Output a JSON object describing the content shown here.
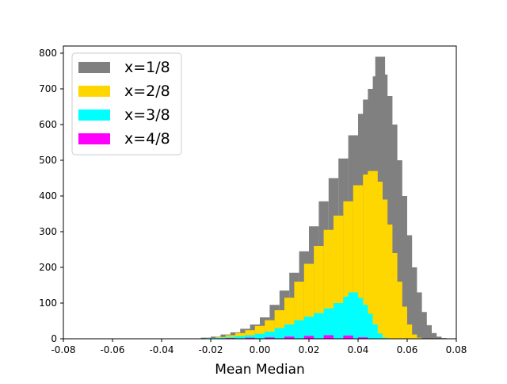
{
  "chart_data": {
    "type": "histogram",
    "title": "",
    "xlabel": "Mean Median",
    "ylabel": "",
    "xlim": [
      -0.08,
      0.08
    ],
    "ylim": [
      0,
      820
    ],
    "x_ticks": [
      "-0.08",
      "-0.06",
      "-0.04",
      "-0.02",
      "0.00",
      "0.02",
      "0.04",
      "0.06",
      "0.08"
    ],
    "x_tick_values": [
      -0.08,
      -0.06,
      -0.04,
      -0.02,
      0.0,
      0.02,
      0.04,
      0.06,
      0.08
    ],
    "y_ticks": [
      "0",
      "100",
      "200",
      "300",
      "400",
      "500",
      "600",
      "700",
      "800"
    ],
    "y_tick_values": [
      0,
      100,
      200,
      300,
      400,
      500,
      600,
      700,
      800
    ],
    "legend_position": "top-left",
    "series": [
      {
        "name": "x=1/8",
        "color": "#808080",
        "x": [
          -0.022,
          -0.018,
          -0.014,
          -0.01,
          -0.006,
          -0.002,
          0.002,
          0.006,
          0.01,
          0.014,
          0.018,
          0.022,
          0.026,
          0.03,
          0.034,
          0.038,
          0.042,
          0.044,
          0.046,
          0.048,
          0.049,
          0.05,
          0.052,
          0.054,
          0.056,
          0.058,
          0.06,
          0.062,
          0.064,
          0.066,
          0.068,
          0.07,
          0.072,
          0.074
        ],
        "values": [
          3,
          6,
          12,
          18,
          28,
          40,
          60,
          95,
          135,
          185,
          245,
          315,
          385,
          450,
          505,
          570,
          630,
          670,
          700,
          735,
          790,
          740,
          680,
          600,
          500,
          400,
          290,
          200,
          130,
          75,
          38,
          16,
          6,
          2
        ]
      },
      {
        "name": "x=2/8",
        "color": "#ffd700",
        "x": [
          -0.02,
          -0.016,
          -0.012,
          -0.008,
          -0.004,
          0.0,
          0.004,
          0.008,
          0.012,
          0.016,
          0.02,
          0.024,
          0.028,
          0.032,
          0.036,
          0.04,
          0.044,
          0.046,
          0.048,
          0.05,
          0.052,
          0.054,
          0.056,
          0.058,
          0.06,
          0.062,
          0.064
        ],
        "values": [
          2,
          5,
          10,
          16,
          24,
          36,
          52,
          80,
          115,
          160,
          210,
          260,
          305,
          345,
          385,
          430,
          460,
          470,
          440,
          390,
          320,
          240,
          160,
          90,
          40,
          12,
          3
        ]
      },
      {
        "name": "x=3/8",
        "color": "#00ffff",
        "x": [
          -0.02,
          -0.016,
          -0.012,
          -0.008,
          -0.004,
          0.0,
          0.004,
          0.008,
          0.012,
          0.016,
          0.02,
          0.024,
          0.028,
          0.032,
          0.036,
          0.038,
          0.04,
          0.042,
          0.044,
          0.046,
          0.048,
          0.05
        ],
        "values": [
          2,
          3,
          5,
          7,
          10,
          14,
          20,
          30,
          40,
          52,
          62,
          72,
          85,
          100,
          118,
          130,
          115,
          95,
          70,
          40,
          15,
          3
        ]
      },
      {
        "name": "x=4/8",
        "color": "#ff00ff",
        "x": [
          -0.02,
          -0.012,
          -0.004,
          0.004,
          0.012,
          0.02,
          0.028,
          0.036,
          0.042
        ],
        "values": [
          1,
          2,
          3,
          4,
          6,
          8,
          10,
          9,
          4
        ]
      }
    ]
  }
}
